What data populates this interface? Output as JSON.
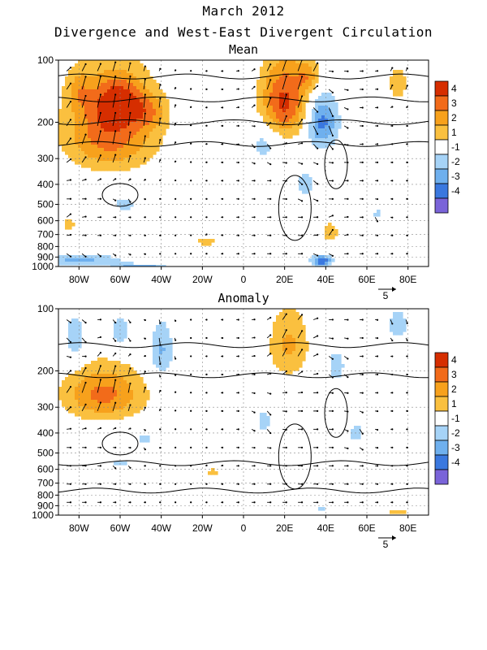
{
  "figure": {
    "title": "March 2012",
    "subtitle": "Divergence and West-East Divergent Circulation"
  },
  "colors": {
    "levels": [
      {
        "label": "4",
        "color": "#d62e00"
      },
      {
        "label": "3",
        "color": "#f26b1a"
      },
      {
        "label": "2",
        "color": "#f7a11c"
      },
      {
        "label": "1",
        "color": "#fac03f"
      },
      {
        "label": "-1",
        "color": "#ffffff"
      },
      {
        "label": "-2",
        "color": "#a6d3f7"
      },
      {
        "label": "-3",
        "color": "#6fb0ee"
      },
      {
        "label": "-4",
        "color": "#3a78df"
      },
      {
        "label": "",
        "color": "#7a64d9"
      }
    ],
    "frame": "#000000",
    "contour": "#000000",
    "vector": "#000000"
  },
  "chart_data": [
    {
      "type": "heatmap",
      "title": "Mean",
      "xticks": [
        "80W",
        "60W",
        "40W",
        "20W",
        "0",
        "20E",
        "40E",
        "60E",
        "80E"
      ],
      "yticks": [
        "100",
        "200",
        "300",
        "400",
        "500",
        "600",
        "700",
        "800",
        "900",
        "1000"
      ],
      "colorbar_ticks": [
        "4",
        "3",
        "2",
        "1",
        "-1",
        "-2",
        "-3",
        "-4"
      ],
      "vector_ref": "5",
      "xlim": [
        -90,
        90
      ],
      "ylim": [
        1000,
        100
      ],
      "y_scale": "log",
      "blobs": [
        {
          "lon": -65,
          "p": 220,
          "rx": 22,
          "rp": 110,
          "v": 3.8
        },
        {
          "lon": -60,
          "p": 160,
          "rx": 12,
          "rp": 40,
          "v": 3
        },
        {
          "lon": -80,
          "p": 140,
          "rx": 6,
          "rp": 30,
          "v": 1.5
        },
        {
          "lon": -45,
          "p": 180,
          "rx": 8,
          "rp": 35,
          "v": 1.5
        },
        {
          "lon": 20,
          "p": 160,
          "rx": 12,
          "rp": 70,
          "v": 4.3
        },
        {
          "lon": 32,
          "p": 120,
          "rx": 6,
          "rp": 20,
          "v": 2
        },
        {
          "lon": 38,
          "p": 200,
          "rx": 8,
          "rp": 60,
          "v": -3.5
        },
        {
          "lon": 75,
          "p": 130,
          "rx": 6,
          "rp": 30,
          "v": 1.5
        },
        {
          "lon": -80,
          "p": 930,
          "rx": 22,
          "rp": 60,
          "v": -2.2
        },
        {
          "lon": -50,
          "p": 990,
          "rx": 12,
          "rp": 20,
          "v": -3.5
        },
        {
          "lon": 38,
          "p": 940,
          "rx": 5,
          "rp": 60,
          "v": -3.8
        },
        {
          "lon": 42,
          "p": 680,
          "rx": 5,
          "rp": 90,
          "v": 1.5
        },
        {
          "lon": 48,
          "p": 980,
          "rx": 6,
          "rp": 20,
          "v": 1.5
        },
        {
          "lon": -58,
          "p": 500,
          "rx": 6,
          "rp": 40,
          "v": -1.5
        },
        {
          "lon": -18,
          "p": 760,
          "rx": 6,
          "rp": 40,
          "v": 1.5
        },
        {
          "lon": 10,
          "p": 250,
          "rx": 8,
          "rp": 60,
          "v": -1.5
        },
        {
          "lon": -85,
          "p": 620,
          "rx": 5,
          "rp": 60,
          "v": 1.3
        },
        {
          "lon": 30,
          "p": 400,
          "rx": 6,
          "rp": 90,
          "v": -1.3
        },
        {
          "lon": 75,
          "p": 980,
          "rx": 5,
          "rp": 15,
          "v": 1.3
        },
        {
          "lon": 65,
          "p": 560,
          "rx": 4,
          "rp": 50,
          "v": -1.2
        }
      ]
    },
    {
      "type": "heatmap",
      "title": "Anomaly",
      "xticks": [
        "80W",
        "60W",
        "40W",
        "20W",
        "0",
        "20E",
        "40E",
        "60E",
        "80E"
      ],
      "yticks": [
        "100",
        "200",
        "300",
        "400",
        "500",
        "600",
        "700",
        "800",
        "900",
        "1000"
      ],
      "colorbar_ticks": [
        "4",
        "3",
        "2",
        "1",
        "-1",
        "-2",
        "-3",
        "-4"
      ],
      "vector_ref": "5",
      "xlim": [
        -90,
        90
      ],
      "ylim": [
        1000,
        100
      ],
      "y_scale": "log",
      "blobs": [
        {
          "lon": -68,
          "p": 260,
          "rx": 20,
          "rp": 80,
          "v": 3.3
        },
        {
          "lon": -82,
          "p": 140,
          "rx": 6,
          "rp": 40,
          "v": -1.8
        },
        {
          "lon": -60,
          "p": 130,
          "rx": 6,
          "rp": 30,
          "v": -1.6
        },
        {
          "lon": -40,
          "p": 160,
          "rx": 6,
          "rp": 50,
          "v": -2.2
        },
        {
          "lon": 22,
          "p": 150,
          "rx": 10,
          "rp": 60,
          "v": 2.2
        },
        {
          "lon": 45,
          "p": 190,
          "rx": 5,
          "rp": 40,
          "v": -1.5
        },
        {
          "lon": 75,
          "p": 120,
          "rx": 6,
          "rp": 25,
          "v": -1.5
        },
        {
          "lon": -15,
          "p": 620,
          "rx": 4,
          "rp": 30,
          "v": 1.5
        },
        {
          "lon": 75,
          "p": 970,
          "rx": 6,
          "rp": 20,
          "v": 1.6
        },
        {
          "lon": -48,
          "p": 430,
          "rx": 5,
          "rp": 40,
          "v": -1.3
        },
        {
          "lon": -60,
          "p": 560,
          "rx": 5,
          "rp": 30,
          "v": -1.3
        },
        {
          "lon": 10,
          "p": 350,
          "rx": 6,
          "rp": 80,
          "v": -1.2
        },
        {
          "lon": 55,
          "p": 400,
          "rx": 6,
          "rp": 80,
          "v": -1.2
        },
        {
          "lon": 38,
          "p": 930,
          "rx": 4,
          "rp": 30,
          "v": -1.3
        }
      ]
    }
  ]
}
